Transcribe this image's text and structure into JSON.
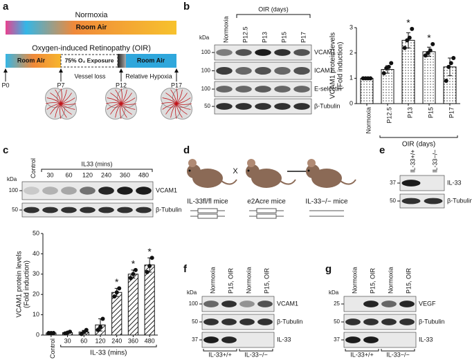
{
  "chart_data": [
    {
      "type": "bar",
      "categories": [
        "Normoxia",
        "P12.5",
        "P13",
        "P15",
        "P17"
      ],
      "values": [
        1,
        1.35,
        2.5,
        2.05,
        1.45
      ],
      "errors": [
        0,
        0.15,
        0.3,
        0.18,
        0.35
      ],
      "points": [
        [
          1,
          1,
          1,
          1
        ],
        [
          1.2,
          1.4,
          1.45,
          1.6
        ],
        [
          2.2,
          2.5,
          2.6,
          2.95
        ],
        [
          1.9,
          2.0,
          2.1,
          2.35
        ],
        [
          0.9,
          1.45,
          1.6,
          1.8
        ]
      ],
      "ylim": [
        0,
        3
      ],
      "yticks": [
        0,
        1,
        2,
        3
      ],
      "ylabel": [
        "VCAM1 protein levels",
        "(Fold induction)"
      ],
      "xlabel": "OIR (days)",
      "annotations": [
        {
          "text": "*",
          "x": "P13"
        },
        {
          "text": "*",
          "x": "P15"
        }
      ],
      "pattern": "dots"
    },
    {
      "type": "bar",
      "categories": [
        "Control",
        "30",
        "60",
        "120",
        "240",
        "360",
        "480"
      ],
      "values": [
        1,
        1.2,
        1.5,
        5,
        21,
        30,
        34.5
      ],
      "errors": [
        0,
        0.3,
        0.8,
        3,
        2,
        2,
        3.5
      ],
      "points": [
        [
          1,
          1,
          1
        ],
        [
          0.8,
          1.2,
          1.6
        ],
        [
          0.5,
          1.5,
          2.5
        ],
        [
          2.5,
          4,
          8
        ],
        [
          19,
          21,
          23
        ],
        [
          28,
          30,
          32
        ],
        [
          31,
          34,
          38
        ]
      ],
      "ylim": [
        0,
        50
      ],
      "yticks": [
        0,
        10,
        20,
        30,
        40,
        50
      ],
      "ylabel": [
        "VCAM1 protein levels",
        "(Fold induction)"
      ],
      "xlabel": "IL-33 (mins)",
      "annotations": [
        {
          "text": "*",
          "x": "240"
        },
        {
          "text": "*",
          "x": "360"
        },
        {
          "text": "*",
          "x": "480"
        }
      ],
      "pattern": "hatch"
    }
  ],
  "panels": {
    "a": {
      "label": "a",
      "normoxia": "Normoxia",
      "room_air": "Room Air",
      "oir_title": "Oxygen-induced Retinopathy (OIR)",
      "exposure": "75% O₂ Exposure",
      "vessel_loss": "Vessel loss",
      "hypoxia": "Relative Hypoxia",
      "days": [
        "P0",
        "P7",
        "P12",
        "P17"
      ]
    },
    "b": {
      "label": "b",
      "kda": "kDa",
      "columns": [
        "Normoxia",
        "P12.5",
        "P13",
        "P15",
        "P17"
      ],
      "group": "OIR (days)",
      "rows": [
        {
          "name": "VCAM1",
          "marker": "100"
        },
        {
          "name": "ICAM1",
          "marker": "100"
        },
        {
          "name": "E-selectin",
          "marker": "100"
        },
        {
          "name": "β-Tubulin",
          "marker": "50"
        }
      ]
    },
    "c": {
      "label": "c",
      "kda": "kDa",
      "columns": [
        "Control",
        "30",
        "60",
        "120",
        "240",
        "360",
        "480"
      ],
      "group": "IL33 (mins)",
      "rows": [
        {
          "name": "VCAM1",
          "marker": "100"
        },
        {
          "name": "β-Tubulin",
          "marker": "50"
        }
      ]
    },
    "d": {
      "label": "d",
      "cross": "X",
      "mice": [
        "IL-33fl/fl mice",
        "e2Acre mice",
        "IL-33−/− mice"
      ]
    },
    "e": {
      "label": "e",
      "columns": [
        "IL-33+/+",
        "IL-33−/−"
      ],
      "rows": [
        {
          "name": "IL-33",
          "marker": "37"
        },
        {
          "name": "β-Tubulin",
          "marker": "50"
        }
      ]
    },
    "f": {
      "label": "f",
      "kda": "kDa",
      "columns": [
        "Normoxia",
        "P15, OIR",
        "Normoxia",
        "P15, OIR"
      ],
      "groups": [
        "IL-33+/+",
        "IL-33−/−"
      ],
      "rows": [
        {
          "name": "VCAM1",
          "marker": "100"
        },
        {
          "name": "β-Tubulin",
          "marker": "50"
        },
        {
          "name": "IL-33",
          "marker": "37"
        }
      ]
    },
    "g": {
      "label": "g",
      "kda": "kDa",
      "columns": [
        "Normoxia",
        "P15, OIR",
        "Normoxia",
        "P15, OIR"
      ],
      "groups": [
        "IL-33+/+",
        "IL-33−/−"
      ],
      "rows": [
        {
          "name": "VEGF",
          "marker": "25"
        },
        {
          "name": "β-Tubulin",
          "marker": "50"
        },
        {
          "name": "IL-33",
          "marker": "37"
        }
      ]
    }
  }
}
